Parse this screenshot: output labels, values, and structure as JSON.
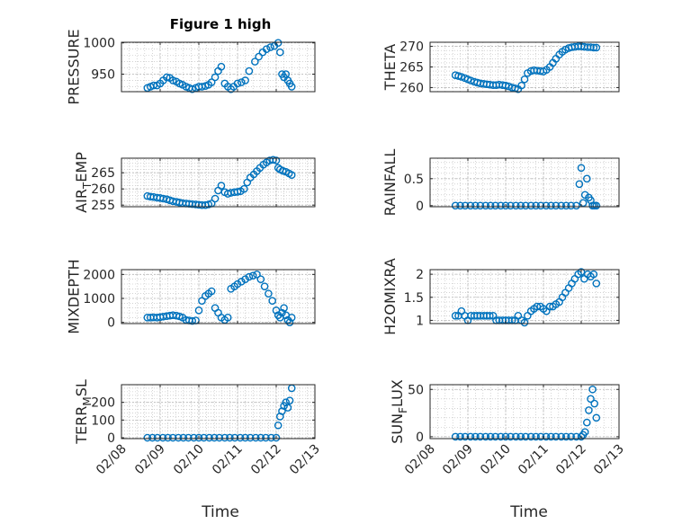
{
  "figure": {
    "title": "Figure 1 high",
    "marker_color": "#0072bd",
    "axis_color": "#262626",
    "grid_color": "#b8b8b8",
    "x_axis": {
      "label": "Time",
      "ticks": [
        "02/08",
        "02/09",
        "02/10",
        "02/11",
        "02/12",
        "02/13"
      ],
      "tick_values": [
        8,
        9,
        10,
        11,
        12,
        13
      ],
      "range": [
        8,
        13
      ]
    }
  },
  "chart_data": [
    {
      "type": "scatter",
      "id": "pressure",
      "ylabel": "PRESSURE",
      "ylim": [
        922,
        1001
      ],
      "yticks": [
        950,
        1000
      ],
      "ytick_labels": [
        "950",
        "1000"
      ],
      "grid": true,
      "minor_grid": true,
      "x": [
        8.67,
        8.75,
        8.83,
        8.92,
        9.0,
        9.08,
        9.17,
        9.25,
        9.33,
        9.42,
        9.5,
        9.58,
        9.67,
        9.75,
        9.83,
        9.92,
        10.0,
        10.08,
        10.17,
        10.25,
        10.33,
        10.42,
        10.5,
        10.58,
        10.67,
        10.75,
        10.83,
        10.9,
        11.0,
        11.1,
        11.2,
        11.3,
        11.45,
        11.55,
        11.65,
        11.75,
        11.85,
        11.95,
        12.05,
        12.1,
        12.15,
        12.2,
        12.25,
        12.3,
        12.35,
        12.4
      ],
      "y": [
        928,
        930,
        932,
        932,
        935,
        940,
        945,
        944,
        940,
        938,
        935,
        933,
        930,
        928,
        926,
        928,
        930,
        930,
        931,
        933,
        937,
        945,
        955,
        962,
        935,
        930,
        926,
        930,
        935,
        937,
        940,
        955,
        970,
        978,
        985,
        990,
        993,
        995,
        1000,
        985,
        950,
        945,
        950,
        940,
        935,
        930
      ]
    },
    {
      "type": "scatter",
      "id": "theta",
      "ylabel": "THETA",
      "ylim": [
        259,
        271
      ],
      "yticks": [
        260,
        265,
        270
      ],
      "ytick_labels": [
        "260",
        "265",
        "270"
      ],
      "grid": true,
      "minor_grid": true,
      "x": [
        8.67,
        8.75,
        8.83,
        8.92,
        9.0,
        9.08,
        9.17,
        9.25,
        9.33,
        9.42,
        9.5,
        9.58,
        9.67,
        9.75,
        9.83,
        9.92,
        10.0,
        10.08,
        10.17,
        10.25,
        10.33,
        10.42,
        10.5,
        10.58,
        10.67,
        10.75,
        10.83,
        10.92,
        11.0,
        11.08,
        11.17,
        11.25,
        11.33,
        11.42,
        11.5,
        11.58,
        11.67,
        11.75,
        11.83,
        11.92,
        12.0,
        12.08,
        12.17,
        12.25,
        12.33,
        12.4
      ],
      "y": [
        263,
        262.8,
        262.6,
        262.3,
        262,
        261.7,
        261.4,
        261.2,
        261.0,
        260.9,
        260.8,
        260.7,
        260.6,
        260.6,
        260.7,
        260.6,
        260.5,
        260.3,
        260.0,
        259.8,
        259.6,
        260.5,
        262,
        263.5,
        264,
        264.2,
        264.1,
        264.0,
        263.9,
        264.3,
        265,
        266,
        267,
        268,
        268.7,
        269.2,
        269.6,
        269.8,
        269.9,
        270,
        270,
        269.9,
        269.8,
        269.8,
        269.7,
        269.7
      ]
    },
    {
      "type": "scatter",
      "id": "air_temp",
      "ylabel": "AIR_TEMP",
      "ylim": [
        254.5,
        269.5
      ],
      "yticks": [
        255,
        260,
        265
      ],
      "ytick_labels": [
        "255",
        "260",
        "265"
      ],
      "grid": true,
      "minor_grid": true,
      "x": [
        8.67,
        8.75,
        8.83,
        8.92,
        9.0,
        9.08,
        9.17,
        9.25,
        9.33,
        9.42,
        9.5,
        9.58,
        9.67,
        9.75,
        9.83,
        9.92,
        10.0,
        10.08,
        10.17,
        10.25,
        10.33,
        10.42,
        10.5,
        10.58,
        10.67,
        10.75,
        10.83,
        10.92,
        11.0,
        11.08,
        11.17,
        11.25,
        11.33,
        11.42,
        11.5,
        11.58,
        11.67,
        11.75,
        11.83,
        11.92,
        12.0,
        12.05,
        12.1,
        12.17,
        12.25,
        12.33,
        12.4
      ],
      "y": [
        257.8,
        257.6,
        257.5,
        257.3,
        257.2,
        257.0,
        256.8,
        256.5,
        256.2,
        256.0,
        255.8,
        255.6,
        255.5,
        255.4,
        255.3,
        255.2,
        255.1,
        255.0,
        255.0,
        255.2,
        255.5,
        257,
        259.5,
        261,
        259,
        258.5,
        258.8,
        259,
        259.1,
        259.3,
        260,
        262,
        263.5,
        264.5,
        265.5,
        266.5,
        267.5,
        268.2,
        268.8,
        269,
        268.8,
        266.5,
        266,
        265.6,
        265.3,
        264.8,
        264.3
      ]
    },
    {
      "type": "scatter",
      "id": "rainfall",
      "ylabel": "RAINFALL",
      "ylim": [
        -0.02,
        0.88
      ],
      "yticks": [
        0,
        0.5
      ],
      "ytick_labels": [
        "0",
        "0.5"
      ],
      "grid": true,
      "minor_grid": true,
      "x": [
        8.67,
        8.8,
        8.93,
        9.07,
        9.2,
        9.33,
        9.47,
        9.6,
        9.73,
        9.87,
        10.0,
        10.13,
        10.27,
        10.4,
        10.53,
        10.67,
        10.8,
        10.93,
        11.07,
        11.2,
        11.33,
        11.47,
        11.6,
        11.73,
        11.87,
        11.95,
        12.0,
        12.05,
        12.1,
        12.15,
        12.2,
        12.25,
        12.3,
        12.35,
        12.4
      ],
      "y": [
        0,
        0,
        0,
        0,
        0,
        0,
        0,
        0,
        0,
        0,
        0,
        0,
        0,
        0,
        0,
        0,
        0,
        0,
        0,
        0,
        0,
        0,
        0,
        0,
        0,
        0.4,
        0.7,
        0.05,
        0.2,
        0.5,
        0.15,
        0.1,
        0,
        0,
        0
      ]
    },
    {
      "type": "scatter",
      "id": "mixdepth",
      "ylabel": "MIXDEPTH",
      "ylim": [
        -50,
        2200
      ],
      "yticks": [
        0,
        1000,
        2000
      ],
      "ytick_labels": [
        "0",
        "1000",
        "2000"
      ],
      "grid": true,
      "minor_grid": true,
      "x": [
        8.67,
        8.75,
        8.83,
        8.92,
        9.0,
        9.08,
        9.17,
        9.25,
        9.33,
        9.42,
        9.5,
        9.58,
        9.67,
        9.75,
        9.83,
        9.92,
        10.0,
        10.08,
        10.17,
        10.25,
        10.33,
        10.42,
        10.5,
        10.58,
        10.67,
        10.75,
        10.83,
        10.92,
        11.0,
        11.1,
        11.2,
        11.3,
        11.4,
        11.5,
        11.6,
        11.7,
        11.8,
        11.9,
        12.0,
        12.05,
        12.1,
        12.15,
        12.2,
        12.25,
        12.3,
        12.35,
        12.4
      ],
      "y": [
        200,
        200,
        210,
        200,
        220,
        240,
        260,
        280,
        300,
        280,
        250,
        200,
        100,
        80,
        60,
        80,
        500,
        900,
        1100,
        1200,
        1300,
        600,
        400,
        200,
        100,
        200,
        1400,
        1500,
        1600,
        1700,
        1800,
        1900,
        1950,
        2000,
        1800,
        1500,
        1200,
        900,
        500,
        300,
        200,
        400,
        600,
        300,
        100,
        0,
        200
      ]
    },
    {
      "type": "scatter",
      "id": "h2omixra",
      "ylabel": "H2OMIXRA",
      "ylim": [
        0.93,
        2.1
      ],
      "yticks": [
        1,
        1.5,
        2
      ],
      "ytick_labels": [
        "1",
        "1.5",
        "2"
      ],
      "grid": true,
      "minor_grid": true,
      "x": [
        8.67,
        8.75,
        8.83,
        8.92,
        9.0,
        9.08,
        9.17,
        9.25,
        9.33,
        9.42,
        9.5,
        9.58,
        9.67,
        9.75,
        9.83,
        9.92,
        10.0,
        10.08,
        10.17,
        10.25,
        10.33,
        10.42,
        10.5,
        10.58,
        10.67,
        10.75,
        10.83,
        10.92,
        11.0,
        11.08,
        11.17,
        11.25,
        11.33,
        11.42,
        11.5,
        11.58,
        11.67,
        11.75,
        11.83,
        11.92,
        12.0,
        12.08,
        12.17,
        12.25,
        12.33,
        12.4
      ],
      "y": [
        1.1,
        1.1,
        1.2,
        1.1,
        1.0,
        1.1,
        1.1,
        1.1,
        1.1,
        1.1,
        1.1,
        1.1,
        1.1,
        1.0,
        1.0,
        1.0,
        1.0,
        1.0,
        1.0,
        1.0,
        1.1,
        1.0,
        0.95,
        1.1,
        1.2,
        1.25,
        1.3,
        1.3,
        1.25,
        1.2,
        1.3,
        1.3,
        1.35,
        1.4,
        1.5,
        1.6,
        1.7,
        1.8,
        1.9,
        2.0,
        2.05,
        1.9,
        2.0,
        1.95,
        2.0,
        1.8
      ]
    },
    {
      "type": "scatter",
      "id": "terr_msl",
      "ylabel": "TERR_MSL",
      "ylim": [
        -5,
        300
      ],
      "yticks": [
        0,
        100,
        200
      ],
      "ytick_labels": [
        "0",
        "100",
        "200"
      ],
      "grid": true,
      "minor_grid": true,
      "x": [
        8.67,
        8.8,
        8.93,
        9.07,
        9.2,
        9.33,
        9.47,
        9.6,
        9.73,
        9.87,
        10.0,
        10.13,
        10.27,
        10.4,
        10.53,
        10.67,
        10.8,
        10.93,
        11.07,
        11.2,
        11.33,
        11.47,
        11.6,
        11.73,
        11.87,
        12.0,
        12.05,
        12.1,
        12.15,
        12.2,
        12.25,
        12.3,
        12.35,
        12.4
      ],
      "y": [
        0,
        0,
        0,
        0,
        0,
        0,
        0,
        0,
        0,
        0,
        0,
        0,
        0,
        0,
        0,
        0,
        0,
        0,
        0,
        0,
        0,
        0,
        0,
        0,
        0,
        0,
        70,
        120,
        150,
        180,
        200,
        170,
        210,
        280
      ]
    },
    {
      "type": "scatter",
      "id": "sun_flux",
      "ylabel": "SUN_FLUX",
      "ylim": [
        -2,
        55
      ],
      "yticks": [
        0,
        50
      ],
      "ytick_labels": [
        "0",
        "50"
      ],
      "grid": true,
      "minor_grid": true,
      "x": [
        8.67,
        8.8,
        8.93,
        9.07,
        9.2,
        9.33,
        9.47,
        9.6,
        9.73,
        9.87,
        10.0,
        10.13,
        10.27,
        10.4,
        10.53,
        10.67,
        10.8,
        10.93,
        11.07,
        11.2,
        11.33,
        11.47,
        11.6,
        11.73,
        11.87,
        12.0,
        12.05,
        12.1,
        12.15,
        12.2,
        12.25,
        12.3,
        12.35,
        12.4
      ],
      "y": [
        0,
        0,
        0,
        0,
        0,
        0,
        0,
        0,
        0,
        0,
        0,
        0,
        0,
        0,
        0,
        0,
        0,
        0,
        0,
        0,
        0,
        0,
        0,
        0,
        0,
        0,
        2,
        5,
        15,
        28,
        40,
        50,
        35,
        20
      ]
    }
  ]
}
